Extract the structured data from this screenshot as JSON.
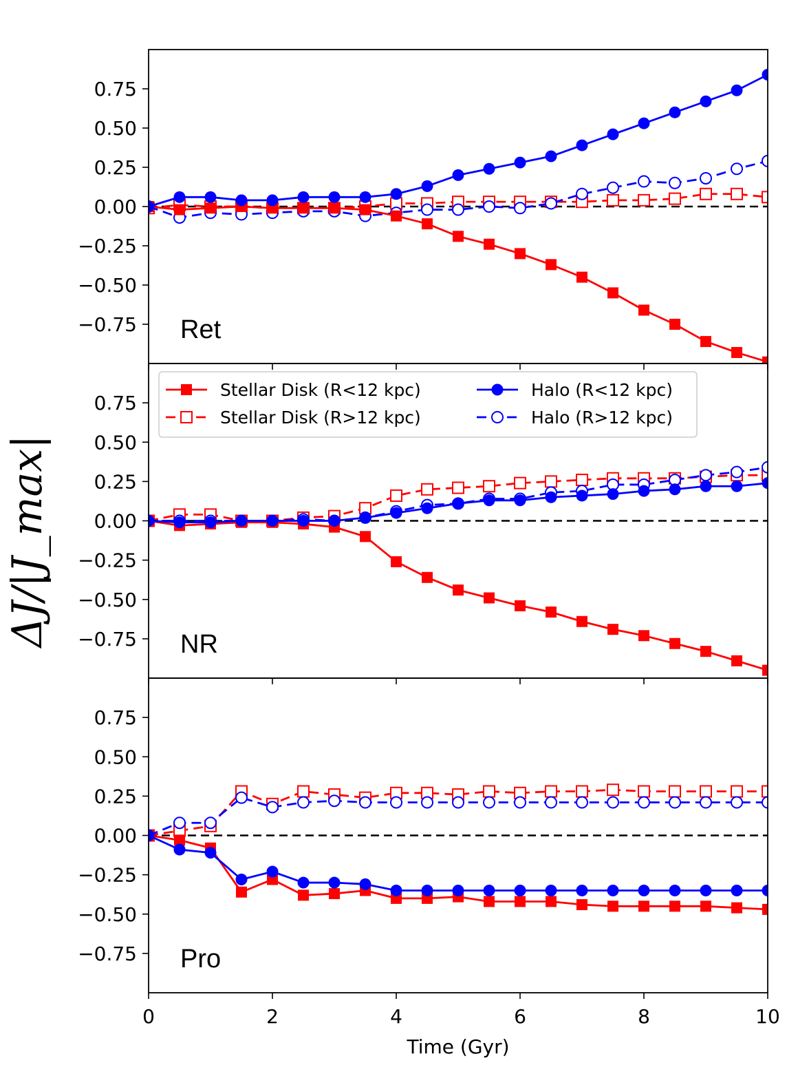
{
  "chart_data": {
    "type": "line",
    "x": [
      0,
      0.5,
      1,
      1.5,
      2,
      2.5,
      3,
      3.5,
      4,
      4.5,
      5,
      5.5,
      6,
      6.5,
      7,
      7.5,
      8,
      8.5,
      9,
      9.5,
      10
    ],
    "xlabel": "Time (Gyr)",
    "ylabel": "ΔJ/|J_max|",
    "xlim": [
      0,
      10
    ],
    "ylim": [
      -1.0,
      1.0
    ],
    "x_ticks": [
      "0",
      "2",
      "4",
      "6",
      "8",
      "10"
    ],
    "y_ticks": [
      "0.75",
      "0.50",
      "0.25",
      "0.00",
      "−0.25",
      "−0.50",
      "−0.75"
    ],
    "legend": {
      "location": "top-left of middle panel",
      "entries": [
        "Stellar Disk (R<12 kpc)",
        "Stellar Disk (R>12 kpc)",
        "Halo (R<12 kpc)",
        "Halo (R>12 kpc)"
      ]
    },
    "colors": {
      "disk": "#ff0000",
      "halo": "#0000ff",
      "zero_line": "#000000"
    },
    "panels": [
      {
        "label": "Ret",
        "series": [
          {
            "name": "Stellar Disk (R<12 kpc)",
            "style": "solid-filled-square",
            "values": [
              0.0,
              -0.02,
              -0.01,
              0.0,
              -0.01,
              -0.01,
              -0.01,
              -0.02,
              -0.06,
              -0.11,
              -0.19,
              -0.24,
              -0.3,
              -0.37,
              -0.45,
              -0.55,
              -0.66,
              -0.75,
              -0.86,
              -0.93,
              -0.99
            ]
          },
          {
            "name": "Stellar Disk (R>12 kpc)",
            "style": "dashed-open-square",
            "values": [
              -0.01,
              0.01,
              0.0,
              0.0,
              -0.01,
              -0.01,
              -0.01,
              0.0,
              0.02,
              0.02,
              0.03,
              0.03,
              0.03,
              0.03,
              0.03,
              0.04,
              0.04,
              0.05,
              0.08,
              0.08,
              0.06
            ]
          },
          {
            "name": "Halo (R<12 kpc)",
            "style": "solid-filled-circle",
            "values": [
              0.0,
              0.06,
              0.06,
              0.04,
              0.04,
              0.06,
              0.06,
              0.06,
              0.08,
              0.13,
              0.2,
              0.24,
              0.28,
              0.32,
              0.39,
              0.46,
              0.53,
              0.6,
              0.67,
              0.74,
              0.84
            ]
          },
          {
            "name": "Halo (R>12 kpc)",
            "style": "dashed-open-circle",
            "values": [
              0.0,
              -0.07,
              -0.04,
              -0.05,
              -0.04,
              -0.03,
              -0.03,
              -0.06,
              -0.04,
              -0.02,
              -0.02,
              0.0,
              -0.01,
              0.02,
              0.08,
              0.12,
              0.16,
              0.15,
              0.18,
              0.24,
              0.29
            ]
          }
        ]
      },
      {
        "label": "NR",
        "series": [
          {
            "name": "Stellar Disk (R<12 kpc)",
            "style": "solid-filled-square",
            "values": [
              0.0,
              -0.03,
              -0.02,
              -0.01,
              -0.01,
              -0.02,
              -0.04,
              -0.1,
              -0.26,
              -0.36,
              -0.44,
              -0.49,
              -0.54,
              -0.58,
              -0.64,
              -0.69,
              -0.73,
              -0.78,
              -0.83,
              -0.89,
              -0.95
            ]
          },
          {
            "name": "Stellar Disk (R>12 kpc)",
            "style": "dashed-open-square",
            "values": [
              0.0,
              0.04,
              0.04,
              0.0,
              0.0,
              0.02,
              0.03,
              0.08,
              0.16,
              0.2,
              0.21,
              0.22,
              0.24,
              0.25,
              0.26,
              0.27,
              0.27,
              0.27,
              0.28,
              0.29,
              0.29
            ]
          },
          {
            "name": "Halo (R<12 kpc)",
            "style": "solid-filled-circle",
            "values": [
              0.0,
              -0.01,
              -0.01,
              0.0,
              0.0,
              0.0,
              0.0,
              0.02,
              0.05,
              0.08,
              0.11,
              0.13,
              0.13,
              0.15,
              0.16,
              0.17,
              0.19,
              0.2,
              0.22,
              0.22,
              0.24
            ]
          },
          {
            "name": "Halo (R>12 kpc)",
            "style": "dashed-open-circle",
            "values": [
              0.0,
              0.0,
              0.0,
              0.0,
              0.0,
              0.01,
              0.0,
              0.02,
              0.06,
              0.1,
              0.11,
              0.14,
              0.14,
              0.18,
              0.19,
              0.23,
              0.23,
              0.26,
              0.29,
              0.31,
              0.34
            ]
          }
        ]
      },
      {
        "label": "Pro",
        "series": [
          {
            "name": "Stellar Disk (R<12 kpc)",
            "style": "solid-filled-square",
            "values": [
              0.0,
              -0.03,
              -0.08,
              -0.36,
              -0.28,
              -0.38,
              -0.37,
              -0.35,
              -0.4,
              -0.4,
              -0.39,
              -0.42,
              -0.42,
              -0.42,
              -0.44,
              -0.45,
              -0.45,
              -0.45,
              -0.45,
              -0.46,
              -0.47
            ]
          },
          {
            "name": "Stellar Disk (R>12 kpc)",
            "style": "dashed-open-square",
            "values": [
              0.0,
              0.03,
              0.06,
              0.28,
              0.2,
              0.28,
              0.26,
              0.24,
              0.27,
              0.27,
              0.26,
              0.28,
              0.27,
              0.28,
              0.28,
              0.29,
              0.28,
              0.28,
              0.28,
              0.28,
              0.28
            ]
          },
          {
            "name": "Halo (R<12 kpc)",
            "style": "solid-filled-circle",
            "values": [
              0.0,
              -0.09,
              -0.11,
              -0.28,
              -0.23,
              -0.3,
              -0.3,
              -0.31,
              -0.35,
              -0.35,
              -0.35,
              -0.35,
              -0.35,
              -0.35,
              -0.35,
              -0.35,
              -0.35,
              -0.35,
              -0.35,
              -0.35,
              -0.35
            ]
          },
          {
            "name": "Halo (R>12 kpc)",
            "style": "dashed-open-circle",
            "values": [
              0.0,
              0.08,
              0.08,
              0.24,
              0.18,
              0.21,
              0.22,
              0.21,
              0.21,
              0.21,
              0.21,
              0.21,
              0.21,
              0.21,
              0.21,
              0.21,
              0.21,
              0.21,
              0.21,
              0.21,
              0.21
            ]
          }
        ]
      }
    ]
  }
}
